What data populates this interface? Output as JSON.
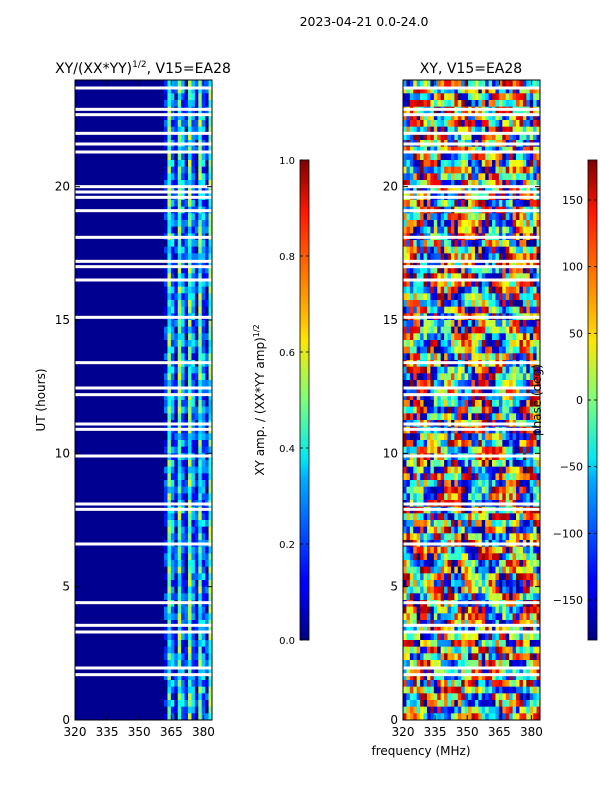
{
  "figure": {
    "suptitle": "2023-04-21 0.0-24.0",
    "shared_xlabel": "frequency (MHz)"
  },
  "chart_data": [
    {
      "type": "heatmap",
      "title_prefix": "XY/(XX*YY)",
      "title_exponent": "1/2",
      "title_suffix": ", V15=EA28",
      "ylabel": "UT (hours)",
      "xlim": [
        320,
        384
      ],
      "ylim": [
        0,
        24
      ],
      "xticks": [
        320,
        335,
        350,
        365,
        380
      ],
      "yticks": [
        0,
        5,
        10,
        15,
        20
      ],
      "colorbar": {
        "label_main": "XY amp. / (XX*YY amp)",
        "label_exponent": "1/2",
        "range": [
          0.0,
          1.0
        ],
        "ticks": [
          "0.0",
          "0.2",
          "0.4",
          "0.6",
          "0.8",
          "1.0"
        ],
        "colormap": "jet"
      },
      "description": "Low normalized amplitude (~0.05) below ~361 MHz; bright striped channels (0.3-0.6) between ~361 and 382 MHz",
      "white_gap_hours": [
        1.7,
        1.95,
        3.3,
        3.55,
        4.4,
        6.6,
        7.9,
        8.1,
        9.9,
        10.9,
        11.1,
        12.2,
        12.45,
        13.4,
        15.1,
        16.5,
        17.0,
        17.2,
        18.1,
        19.1,
        19.6,
        19.8,
        20.0,
        21.3,
        21.6,
        22.0,
        22.7,
        22.9,
        23.7
      ]
    },
    {
      "type": "heatmap",
      "title": "XY, V15=EA28",
      "xlim": [
        320,
        384
      ],
      "ylim": [
        0,
        24
      ],
      "xticks": [
        320,
        335,
        350,
        365,
        380
      ],
      "yticks": [
        0,
        5,
        10,
        15,
        20
      ],
      "colorbar": {
        "label": "phase (deg)",
        "range": [
          -180,
          180
        ],
        "ticks": [
          "150",
          "100",
          "50",
          "0",
          "−50",
          "−100",
          "−150"
        ],
        "tick_values": [
          150,
          100,
          50,
          0,
          -50,
          -100,
          -150
        ],
        "colormap": "jet"
      },
      "description": "Phase map varying over full -180..180 deg range with horizontal banding",
      "white_gap_hours": [
        1.7,
        1.95,
        3.3,
        3.55,
        4.4,
        6.6,
        7.9,
        8.1,
        9.9,
        10.9,
        11.1,
        12.2,
        12.45,
        13.4,
        15.1,
        16.5,
        17.0,
        17.2,
        18.1,
        19.1,
        19.6,
        19.8,
        20.0,
        21.3,
        21.6,
        22.0,
        22.7,
        22.9,
        23.7
      ]
    }
  ]
}
